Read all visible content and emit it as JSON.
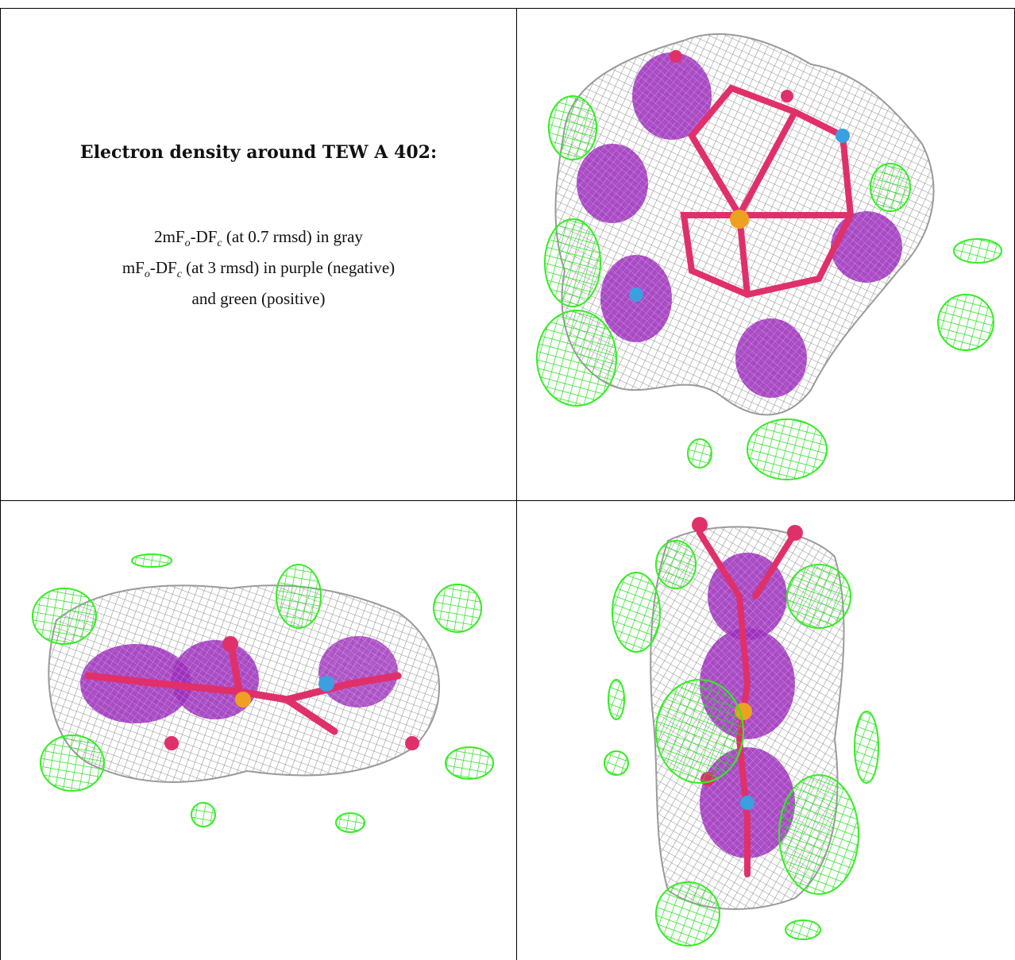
{
  "heading": "Electron density around TEW A 402:",
  "legend": {
    "line1": {
      "pre": "2mF",
      "sub1": "o",
      "mid": "-DF",
      "sub2": "c",
      "post": " (at 0.7 rmsd) in gray"
    },
    "line2": {
      "pre": "mF",
      "sub1": "o",
      "mid": "-DF",
      "sub2": "c",
      "post": " (at 3 rmsd) in purple (negative)"
    },
    "line3": "and green (positive)"
  },
  "colors": {
    "gray_mesh": "#9a9a9a",
    "purple_negative": "#b030c8",
    "green_positive": "#33ee22",
    "bond_magenta": "#e0306a",
    "atom_blue": "#3aa0e0",
    "atom_orange": "#f0a020"
  },
  "panels": [
    "view-top-right",
    "view-bottom-left",
    "view-bottom-right"
  ]
}
